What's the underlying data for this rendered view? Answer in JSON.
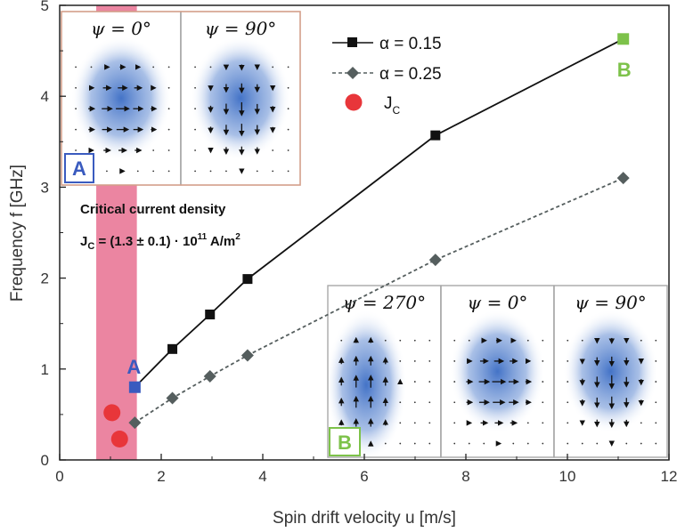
{
  "chart_data": {
    "type": "line",
    "xlabel": "Spin drift velocity u [m/s]",
    "ylabel": "Frequency f [GHz]",
    "xlim": [
      0,
      12
    ],
    "ylim": [
      0,
      5
    ],
    "xticks": [
      "0",
      "2",
      "4",
      "6",
      "8",
      "10",
      "12"
    ],
    "yticks": [
      "0",
      "1",
      "2",
      "3",
      "4",
      "5"
    ],
    "series": [
      {
        "name": "α = 0.15",
        "style": "solid",
        "marker": "square",
        "color": "#111111",
        "x": [
          1.48,
          2.22,
          2.96,
          3.7,
          7.4,
          11.1
        ],
        "y": [
          0.8,
          1.22,
          1.6,
          1.99,
          3.57,
          4.63
        ]
      },
      {
        "name": "α = 0.25",
        "style": "dashed",
        "marker": "diamond",
        "color": "#555e5e",
        "x": [
          1.48,
          2.22,
          2.96,
          3.7,
          7.4,
          11.1
        ],
        "y": [
          0.41,
          0.68,
          0.92,
          1.15,
          2.2,
          3.1
        ]
      }
    ],
    "jc_points": {
      "name": "J",
      "name_sub": "C",
      "color": "#e8363a",
      "x": [
        1.03,
        1.18
      ],
      "y": [
        0.52,
        0.23
      ]
    },
    "critical_band": {
      "x_min": 0.72,
      "x_max": 1.52,
      "color": "#e87090"
    },
    "point_labels": [
      {
        "text": "A",
        "x": 1.48,
        "y": 0.8,
        "color": "#3a5bbf"
      },
      {
        "text": "B",
        "x": 11.1,
        "y": 4.63,
        "color": "#7dc24a"
      }
    ],
    "annotations": {
      "title_line": "Critical current density",
      "formula_prefix": "J",
      "formula_sub": "C",
      "formula_body": " = (1.3 ± 0.1) · 10",
      "formula_exp": "11",
      "formula_unit": " A/m",
      "formula_unit_exp": "2"
    },
    "insets": [
      {
        "label": "A",
        "label_color": "#3a5bbf",
        "panels": [
          {
            "psi": "ψ = 0°",
            "direction": "right"
          },
          {
            "psi": "ψ = 90°",
            "direction": "down"
          }
        ]
      },
      {
        "label": "B",
        "label_color": "#7dc24a",
        "panels": [
          {
            "psi": "ψ = 270°",
            "direction": "up"
          },
          {
            "psi": "ψ = 0°",
            "direction": "right"
          },
          {
            "psi": "ψ = 90°",
            "direction": "down"
          }
        ]
      }
    ],
    "grid": false,
    "legend_position": "top-right"
  }
}
